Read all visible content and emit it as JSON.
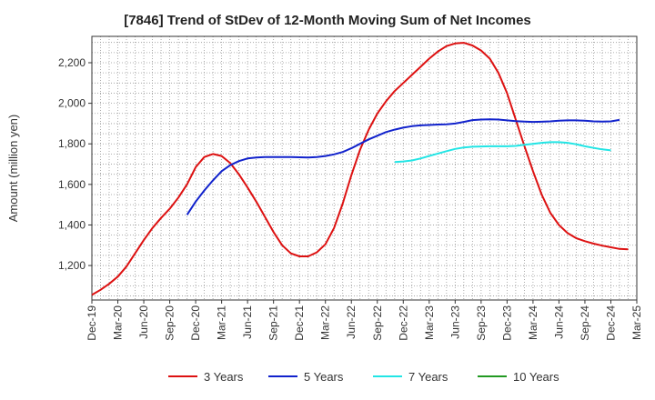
{
  "chart_data": {
    "type": "line",
    "title": "[7846]  Trend of StDev of 12-Month Moving Sum of Net Incomes",
    "xlabel": "",
    "ylabel": "Amount (million yen)",
    "ylim": [
      1030,
      2330
    ],
    "yticks": [
      1200,
      1400,
      1600,
      1800,
      2000,
      2200
    ],
    "ytick_labels": [
      "1,200",
      "1,400",
      "1,600",
      "1,800",
      "2,000",
      "2,200"
    ],
    "xticks": [
      "Dec-19",
      "Mar-20",
      "Jun-20",
      "Sep-20",
      "Dec-20",
      "Mar-21",
      "Jun-21",
      "Sep-21",
      "Dec-21",
      "Mar-22",
      "Jun-22",
      "Sep-22",
      "Dec-22",
      "Mar-23",
      "Jun-23",
      "Sep-23",
      "Dec-23",
      "Mar-24",
      "Jun-24",
      "Sep-24",
      "Dec-24",
      "Mar-25"
    ],
    "x_start": "Dec-19",
    "x_step": "1 month",
    "grid": true,
    "legend_position": "bottom",
    "series": [
      {
        "name": "3 Years",
        "color": "#dd1111",
        "start": "Dec-19",
        "values": [
          1055,
          1080,
          1110,
          1145,
          1195,
          1260,
          1325,
          1385,
          1435,
          1480,
          1535,
          1600,
          1685,
          1735,
          1750,
          1740,
          1705,
          1650,
          1585,
          1515,
          1440,
          1365,
          1300,
          1260,
          1245,
          1245,
          1265,
          1305,
          1385,
          1505,
          1645,
          1770,
          1870,
          1950,
          2010,
          2060,
          2100,
          2140,
          2180,
          2220,
          2255,
          2282,
          2295,
          2298,
          2285,
          2260,
          2220,
          2150,
          2050,
          1920,
          1790,
          1665,
          1550,
          1460,
          1400,
          1360,
          1335,
          1320,
          1308,
          1298,
          1290,
          1282,
          1280
        ]
      },
      {
        "name": "5 Years",
        "color": "#1122cc",
        "start": "Nov-20",
        "values": [
          1450,
          1515,
          1570,
          1620,
          1665,
          1695,
          1715,
          1728,
          1733,
          1735,
          1735,
          1735,
          1735,
          1734,
          1733,
          1735,
          1740,
          1748,
          1760,
          1778,
          1800,
          1822,
          1840,
          1858,
          1870,
          1880,
          1887,
          1891,
          1893,
          1895,
          1896,
          1900,
          1908,
          1917,
          1920,
          1921,
          1920,
          1916,
          1912,
          1910,
          1908,
          1909,
          1911,
          1914,
          1916,
          1916,
          1914,
          1911,
          1910,
          1911,
          1918
        ]
      },
      {
        "name": "7 Years",
        "color": "#22e5e5",
        "start": "Nov-22",
        "values": [
          1710,
          1713,
          1718,
          1728,
          1740,
          1752,
          1764,
          1775,
          1782,
          1786,
          1787,
          1788,
          1788,
          1788,
          1790,
          1795,
          1800,
          1805,
          1808,
          1808,
          1805,
          1798,
          1788,
          1780,
          1773,
          1768
        ]
      },
      {
        "name": "10 Years",
        "color": "#229922",
        "start": "",
        "values": []
      }
    ]
  }
}
